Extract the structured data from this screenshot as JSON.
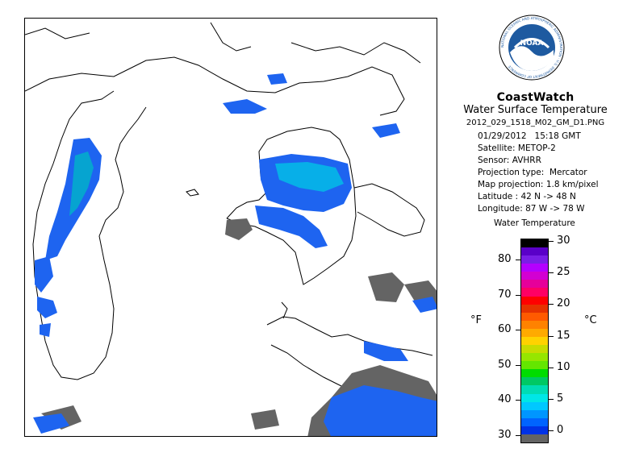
{
  "header": {
    "brand": "CoastWatch",
    "product": "Water Surface Temperature",
    "filename": "2012_029_1518_M02_GM_D1.PNG",
    "date": "01/29/2012",
    "time": "15:18 GMT"
  },
  "metadata": [
    {
      "label": "Satellite:",
      "value": "METOP-2"
    },
    {
      "label": "Sensor:",
      "value": "AVHRR"
    },
    {
      "label": "Projection type:",
      "value": "Mercator"
    },
    {
      "label": "Map projection:",
      "value": "1.8 km/pixel"
    },
    {
      "label": "Latitude :",
      "value": "42 N -> 48 N"
    },
    {
      "label": "Longitude:",
      "value": "87 W -> 78 W"
    }
  ],
  "logo": {
    "text": "NOAA",
    "ring_text": "NATIONAL OCEANIC AND ATMOSPHERIC ADMINISTRATION · U.S. DEPARTMENT OF COMMERCE",
    "icon": "noaa-logo-icon"
  },
  "scale": {
    "title": "Water Temperature",
    "unit_f": "°F",
    "unit_c": "°C",
    "fahrenheit_ticks": [
      "80",
      "70",
      "60",
      "50",
      "40",
      "30"
    ],
    "celsius_ticks": [
      "30",
      "25",
      "20",
      "15",
      "10",
      "5",
      "0"
    ],
    "colors_top_to_bottom": [
      "#000000",
      "#5a00c8",
      "#7a1ee6",
      "#b400ff",
      "#d200d2",
      "#e6009a",
      "#ff0064",
      "#ff0000",
      "#e63200",
      "#ff5a00",
      "#ff8200",
      "#ffaa00",
      "#ffd200",
      "#c8dc00",
      "#96e600",
      "#64e600",
      "#00dc00",
      "#00c864",
      "#00dcb4",
      "#00e6e6",
      "#00c8ff",
      "#0096ff",
      "#0064ff",
      "#0032e6",
      "#646464"
    ]
  },
  "map": {
    "lake_color": "#1e64f0",
    "land_color": "#ffffff",
    "cloud_color": "#646464"
  }
}
